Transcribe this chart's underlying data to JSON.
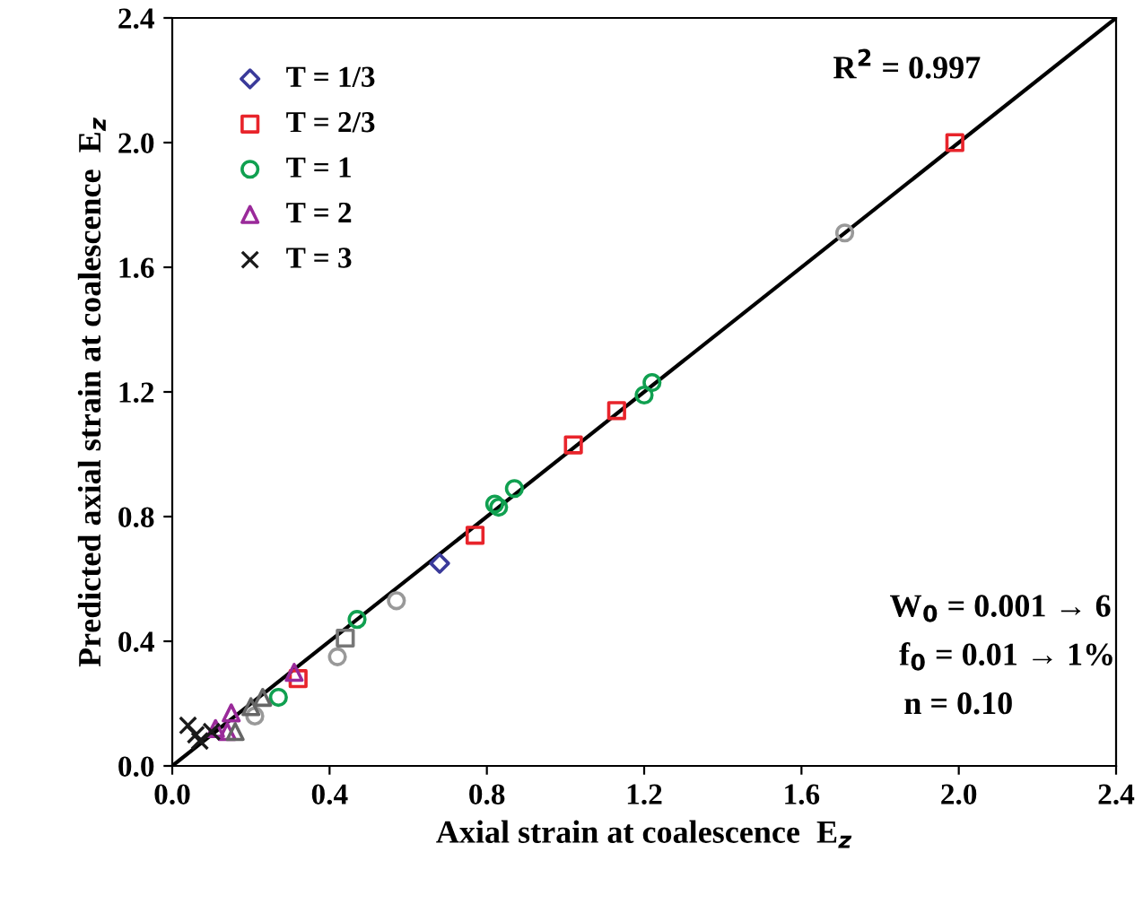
{
  "chart_data": {
    "type": "scatter",
    "xlabel": "Axial strain at coalescence  E$_{z}$",
    "ylabel": "Predicted axial strain at coalescence  E$_{z}$",
    "xlim": [
      0,
      2.4
    ],
    "ylim": [
      0,
      2.4
    ],
    "xticks": [
      {
        "value": 0,
        "label": "0.0"
      },
      {
        "value": 0.4,
        "label": "0.4"
      },
      {
        "value": 0.8,
        "label": "0.8"
      },
      {
        "value": 1.2,
        "label": "1.2"
      },
      {
        "value": 1.6,
        "label": "1.6"
      },
      {
        "value": 2.0,
        "label": "2.0"
      },
      {
        "value": 2.4,
        "label": "2.4"
      }
    ],
    "yticks": [
      {
        "value": 0,
        "label": "0.0"
      },
      {
        "value": 0.4,
        "label": "0.4"
      },
      {
        "value": 0.8,
        "label": "0.8"
      },
      {
        "value": 1.2,
        "label": "1.2"
      },
      {
        "value": 1.6,
        "label": "1.6"
      },
      {
        "value": 2.0,
        "label": "2.0"
      },
      {
        "value": 2.4,
        "label": "2.4"
      }
    ],
    "grid": false,
    "legend": "top left",
    "series": [
      {
        "name": "T = 1/3",
        "color": "#3a3a9a",
        "marker": "diamond",
        "x": [
          0.68
        ],
        "values": [
          0.65
        ]
      },
      {
        "name": "T = 2/3",
        "color": "#e8242b",
        "marker": "square",
        "x": [
          1.99,
          0.77,
          1.02,
          1.13,
          0.32
        ],
        "values": [
          2.0,
          0.74,
          1.03,
          1.14,
          0.28
        ]
      },
      {
        "name": "T = 1",
        "color": "#10a050",
        "marker": "circle",
        "x": [
          0.47,
          0.82,
          0.83,
          0.87,
          1.2,
          1.22,
          0.27
        ],
        "values": [
          0.47,
          0.84,
          0.83,
          0.89,
          1.19,
          1.23,
          0.22
        ]
      },
      {
        "name": "T = 2",
        "color": "#9a2a9a",
        "marker": "triangle",
        "x": [
          0.31,
          0.15,
          0.14,
          0.11
        ],
        "values": [
          0.3,
          0.17,
          0.11,
          0.12
        ]
      },
      {
        "name": "T = 3",
        "color": "#1a1a1a",
        "marker": "cross",
        "x": [
          0.04,
          0.07,
          0.08,
          0.09,
          0.1,
          0.06
        ],
        "values": [
          0.13,
          0.08,
          null,
          null,
          0.11,
          0.1
        ]
      },
      {
        "color": "#999999",
        "marker": "circle",
        "x": [
          1.71,
          0.57,
          0.42,
          0.21
        ],
        "values": [
          1.71,
          0.53,
          0.35,
          0.16
        ]
      },
      {
        "color": "#777777",
        "marker": "square",
        "x": [
          0.44
        ],
        "values": [
          0.41
        ]
      },
      {
        "color": "#666666",
        "marker": "triangle",
        "x": [
          0.2,
          0.23,
          0.16
        ],
        "values": [
          0.19,
          0.22,
          0.11
        ]
      },
      {
        "type": "line",
        "color": "#000000",
        "x": [
          0,
          2.4
        ],
        "values": [
          0,
          2.4
        ]
      }
    ],
    "annotations": [
      "R$^{2}$ = 0.997",
      "W$_{0}$ = 0.001 → 6",
      "f$_{0}$ = 0.01 → 1%",
      "n = 0.10"
    ]
  }
}
